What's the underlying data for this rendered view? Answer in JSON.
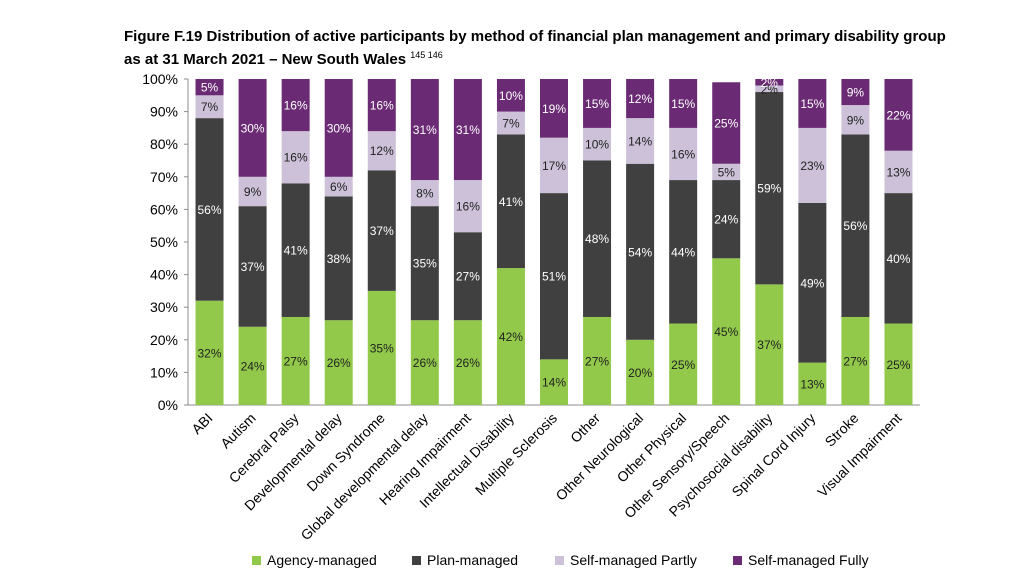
{
  "figure": {
    "title": "Figure F.19 Distribution of active participants by method of financial plan management and primary disability group as at 31 March 2021 – New South Wales",
    "footnote_refs": "145 146"
  },
  "chart_data": {
    "type": "bar",
    "stacked": true,
    "title": "Figure F.19 Distribution of active participants by method of financial plan management and primary disability group as at 31 March 2021 – New South Wales",
    "xlabel": "",
    "ylabel": "",
    "ylim": [
      0,
      100
    ],
    "y_ticks": [
      "0%",
      "10%",
      "20%",
      "30%",
      "40%",
      "50%",
      "60%",
      "70%",
      "80%",
      "90%",
      "100%"
    ],
    "legend_position": "bottom",
    "grid": false,
    "categories": [
      "ABI",
      "Autism",
      "Cerebral Palsy",
      "Developmental delay",
      "Down Syndrome",
      "Global developmental delay",
      "Hearing Impairment",
      "Intellectual Disability",
      "Multiple Sclerosis",
      "Other",
      "Other Neurological",
      "Other Physical",
      "Other Sensory/Speech",
      "Psychosocial disability",
      "Spinal Cord Injury",
      "Stroke",
      "Visual Impairment"
    ],
    "series": [
      {
        "name": "Agency-managed",
        "color": "#92c94a",
        "values": [
          32,
          24,
          27,
          26,
          35,
          26,
          26,
          42,
          14,
          27,
          20,
          25,
          45,
          37,
          13,
          27,
          25
        ]
      },
      {
        "name": "Plan-managed",
        "color": "#404040",
        "values": [
          56,
          37,
          41,
          38,
          37,
          35,
          27,
          41,
          51,
          48,
          54,
          44,
          24,
          59,
          49,
          56,
          40
        ]
      },
      {
        "name": "Self-managed Partly",
        "color": "#ccc1d8",
        "values": [
          7,
          9,
          16,
          6,
          12,
          8,
          16,
          7,
          17,
          10,
          14,
          16,
          5,
          2,
          23,
          9,
          13
        ]
      },
      {
        "name": "Self-managed Fully",
        "color": "#6b2b74",
        "values": [
          5,
          30,
          16,
          30,
          16,
          31,
          31,
          10,
          19,
          15,
          12,
          15,
          25,
          2,
          15,
          9,
          22
        ]
      }
    ]
  }
}
